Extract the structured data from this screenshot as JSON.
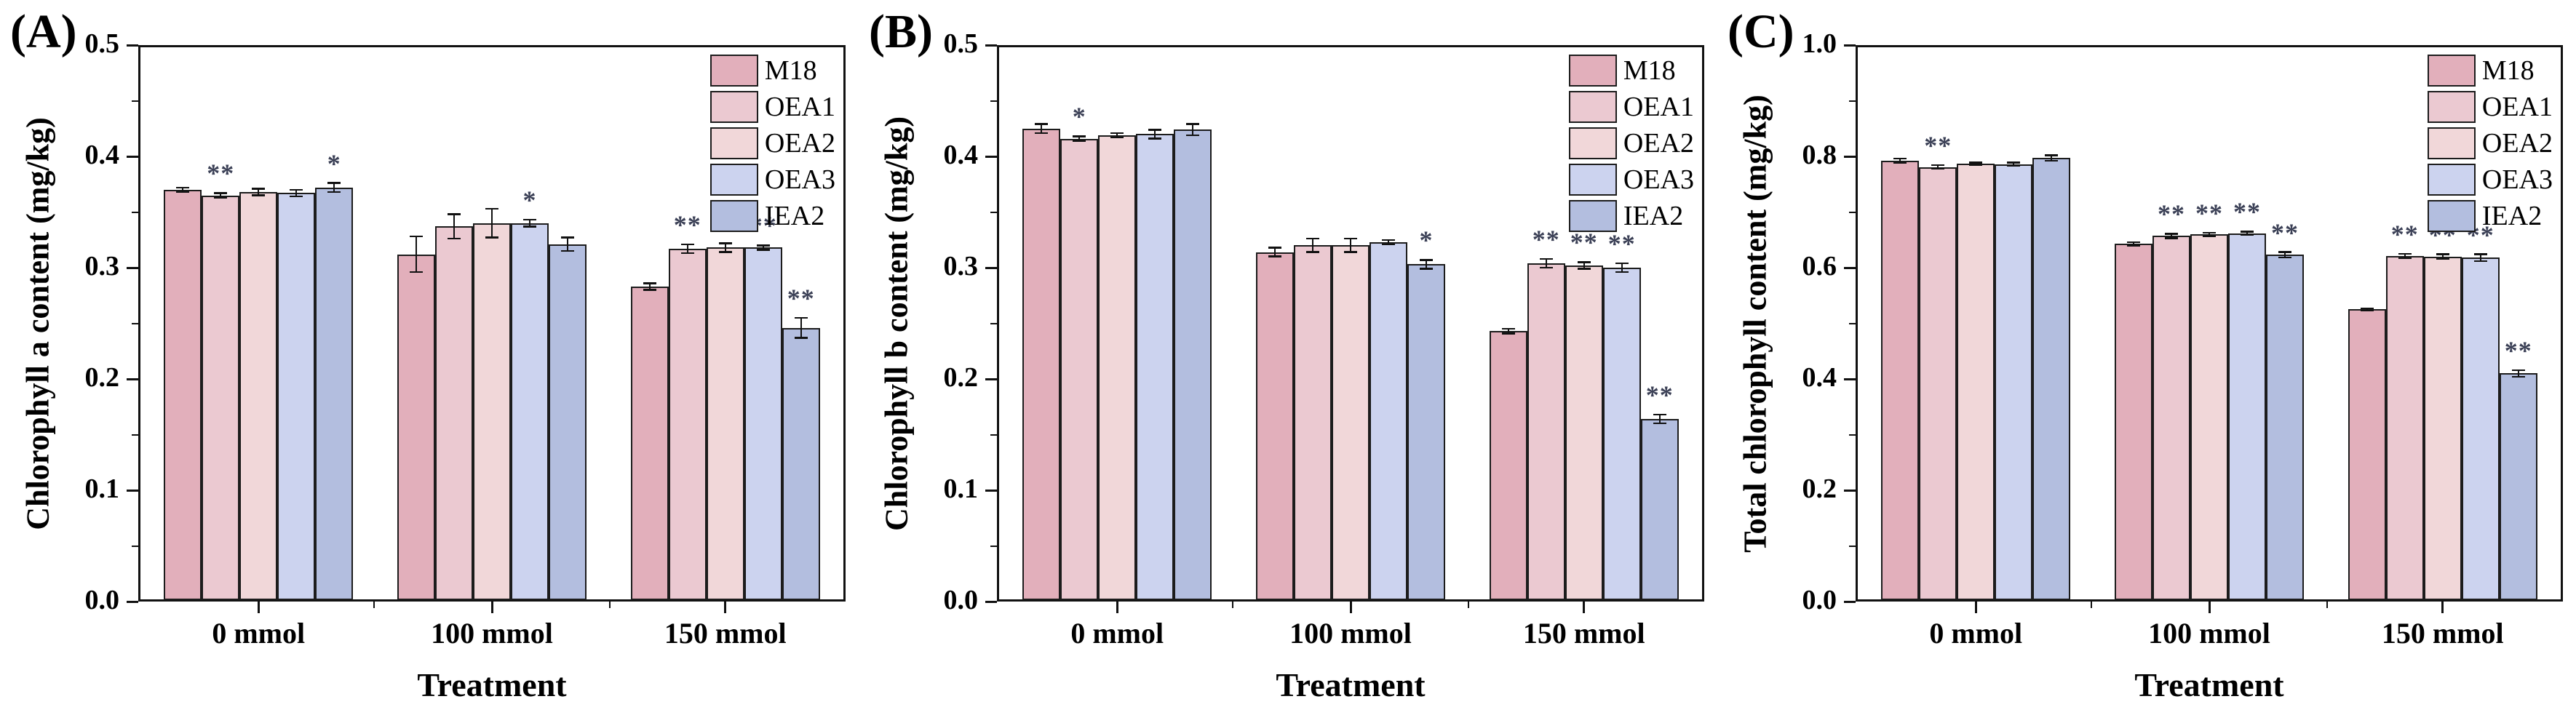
{
  "chart_data": [
    {
      "type": "bar",
      "panel_label": "(A)",
      "ylabel": "Chlorophyll a content (mg/kg)",
      "xlabel": "Treatment",
      "ylim": [
        0,
        0.5
      ],
      "yticks": [
        0,
        0.1,
        0.2,
        0.3,
        0.4,
        0.5
      ],
      "ytick_labels": [
        "0.0",
        "0.1",
        "0.2",
        "0.3",
        "0.4",
        "0.5"
      ],
      "yminor": [
        0.05,
        0.15,
        0.25,
        0.35,
        0.45
      ],
      "grid": false,
      "legend_position": "top-right",
      "categories": [
        "0 mmol",
        "100 mmol",
        "150 mmol"
      ],
      "series": [
        {
          "name": "M18",
          "color": "#e2afbb",
          "values": [
            0.37,
            0.312,
            0.283
          ],
          "errors": [
            0.002,
            0.016,
            0.003
          ],
          "sig": [
            "",
            "",
            ""
          ]
        },
        {
          "name": "OEA1",
          "color": "#ebc9d1",
          "values": [
            0.365,
            0.337,
            0.317
          ],
          "errors": [
            0.002,
            0.011,
            0.004
          ],
          "sig": [
            "**",
            "",
            "**"
          ]
        },
        {
          "name": "OEA2",
          "color": "#f1d7d9",
          "values": [
            0.368,
            0.34,
            0.318
          ],
          "errors": [
            0.003,
            0.013,
            0.004
          ],
          "sig": [
            "",
            "",
            "**"
          ]
        },
        {
          "name": "OEA3",
          "color": "#ccd3ef",
          "values": [
            0.367,
            0.34,
            0.318
          ],
          "errors": [
            0.003,
            0.003,
            0.002
          ],
          "sig": [
            "",
            "*",
            "**"
          ]
        },
        {
          "name": "IEA2",
          "color": "#b3bedf",
          "values": [
            0.372,
            0.321,
            0.246
          ],
          "errors": [
            0.004,
            0.006,
            0.009
          ],
          "sig": [
            "*",
            "",
            "**"
          ]
        }
      ]
    },
    {
      "type": "bar",
      "panel_label": "(B)",
      "ylabel": "Chlorophyll b content (mg/kg)",
      "xlabel": "Treatment",
      "ylim": [
        0,
        0.5
      ],
      "yticks": [
        0,
        0.1,
        0.2,
        0.3,
        0.4,
        0.5
      ],
      "ytick_labels": [
        "0.0",
        "0.1",
        "0.2",
        "0.3",
        "0.4",
        "0.5"
      ],
      "yminor": [
        0.05,
        0.15,
        0.25,
        0.35,
        0.45
      ],
      "grid": false,
      "legend_position": "top-right",
      "categories": [
        "0 mmol",
        "100 mmol",
        "150 mmol"
      ],
      "series": [
        {
          "name": "M18",
          "color": "#e2afbb",
          "values": [
            0.425,
            0.314,
            0.243
          ],
          "errors": [
            0.004,
            0.004,
            0.002
          ],
          "sig": [
            "",
            "",
            ""
          ]
        },
        {
          "name": "OEA1",
          "color": "#ebc9d1",
          "values": [
            0.416,
            0.32,
            0.304
          ],
          "errors": [
            0.002,
            0.006,
            0.004
          ],
          "sig": [
            "*",
            "",
            "**"
          ]
        },
        {
          "name": "OEA2",
          "color": "#f1d7d9",
          "values": [
            0.419,
            0.32,
            0.302
          ],
          "errors": [
            0.002,
            0.006,
            0.003
          ],
          "sig": [
            "",
            "",
            "**"
          ]
        },
        {
          "name": "OEA3",
          "color": "#ccd3ef",
          "values": [
            0.42,
            0.323,
            0.3
          ],
          "errors": [
            0.004,
            0.002,
            0.004
          ],
          "sig": [
            "",
            "",
            "**"
          ]
        },
        {
          "name": "IEA2",
          "color": "#b3bedf",
          "values": [
            0.424,
            0.303,
            0.164
          ],
          "errors": [
            0.005,
            0.004,
            0.004
          ],
          "sig": [
            "",
            "*",
            "**"
          ]
        }
      ]
    },
    {
      "type": "bar",
      "panel_label": "(C)",
      "ylabel": "Total chlorophyll content (mg/kg)",
      "xlabel": "Treatment",
      "ylim": [
        0,
        1.0
      ],
      "yticks": [
        0,
        0.2,
        0.4,
        0.6,
        0.8,
        1.0
      ],
      "ytick_labels": [
        "0.0",
        "0.2",
        "0.4",
        "0.6",
        "0.8",
        "1.0"
      ],
      "yminor": [
        0.1,
        0.3,
        0.5,
        0.7,
        0.9
      ],
      "grid": false,
      "legend_position": "top-right",
      "categories": [
        "0 mmol",
        "100 mmol",
        "150 mmol"
      ],
      "series": [
        {
          "name": "M18",
          "color": "#e2afbb",
          "values": [
            0.792,
            0.643,
            0.525
          ],
          "errors": [
            0.004,
            0.003,
            0.002
          ],
          "sig": [
            "",
            "",
            ""
          ]
        },
        {
          "name": "OEA1",
          "color": "#ebc9d1",
          "values": [
            0.781,
            0.657,
            0.621
          ],
          "errors": [
            0.003,
            0.004,
            0.004
          ],
          "sig": [
            "**",
            "**",
            "**"
          ]
        },
        {
          "name": "OEA2",
          "color": "#f1d7d9",
          "values": [
            0.787,
            0.66,
            0.62
          ],
          "errors": [
            0.002,
            0.003,
            0.004
          ],
          "sig": [
            "",
            "**",
            "**"
          ]
        },
        {
          "name": "OEA3",
          "color": "#ccd3ef",
          "values": [
            0.786,
            0.662,
            0.618
          ],
          "errors": [
            0.003,
            0.003,
            0.006
          ],
          "sig": [
            "",
            "**",
            "**"
          ]
        },
        {
          "name": "IEA2",
          "color": "#b3bedf",
          "values": [
            0.797,
            0.623,
            0.41
          ],
          "errors": [
            0.005,
            0.005,
            0.006
          ],
          "sig": [
            "",
            "**",
            "**"
          ]
        }
      ]
    }
  ]
}
